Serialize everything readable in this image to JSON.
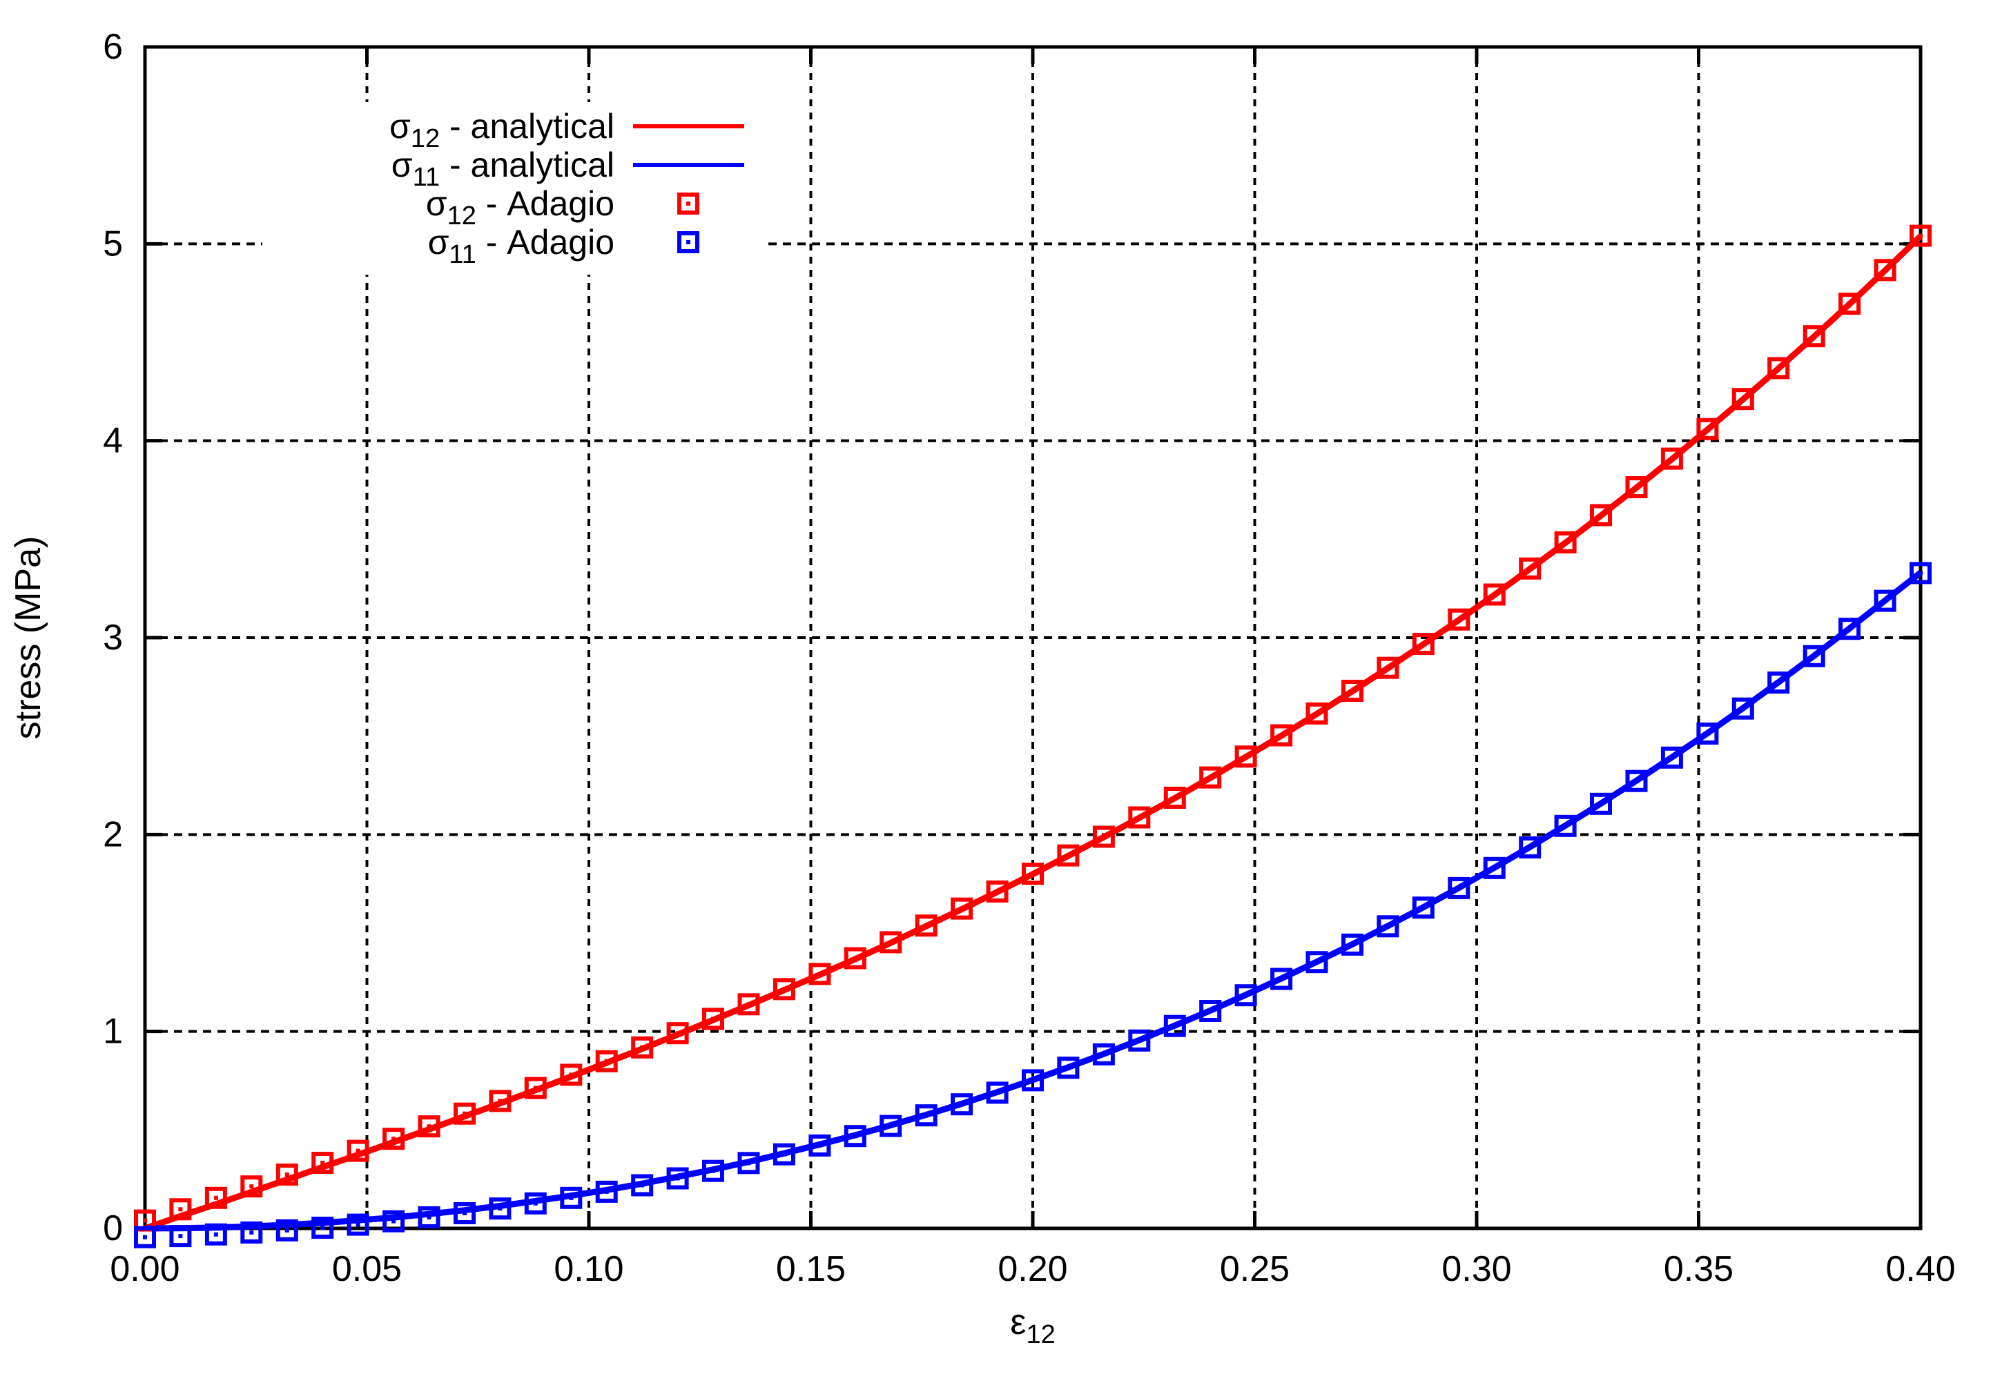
{
  "chart_data": {
    "type": "line",
    "title": "",
    "xlabel": {
      "symbol": "ε",
      "subscript": "12"
    },
    "ylabel": "stress (MPa)",
    "xlim": [
      0,
      0.4
    ],
    "ylim": [
      0,
      6
    ],
    "grid": true,
    "legend_position": "inside-top-left",
    "colors": {
      "sigma12": "#ff0000",
      "sigma11": "#0000ff",
      "axis": "#000000",
      "background": "#ffffff"
    },
    "x_ticks": [
      0,
      0.05,
      0.1,
      0.15,
      0.2,
      0.25,
      0.3,
      0.35,
      0.4
    ],
    "x_tick_labels": [
      "0.00",
      "0.05",
      "0.10",
      "0.15",
      "0.20",
      "0.25",
      "0.30",
      "0.35",
      "0.40"
    ],
    "y_ticks": [
      0,
      1,
      2,
      3,
      4,
      5,
      6
    ],
    "y_tick_labels": [
      "0",
      "1",
      "2",
      "3",
      "4",
      "5",
      "6"
    ],
    "x": [
      0,
      0.008,
      0.016,
      0.024,
      0.032,
      0.04,
      0.048,
      0.056,
      0.064,
      0.072,
      0.08,
      0.088,
      0.096,
      0.104,
      0.112,
      0.12,
      0.128,
      0.136,
      0.144,
      0.152,
      0.16,
      0.168,
      0.176,
      0.184,
      0.192,
      0.2,
      0.208,
      0.216,
      0.224,
      0.232,
      0.24,
      0.248,
      0.256,
      0.264,
      0.272,
      0.28,
      0.288,
      0.296,
      0.304,
      0.312,
      0.32,
      0.328,
      0.336,
      0.344,
      0.352,
      0.36,
      0.368,
      0.376,
      0.384,
      0.392,
      0.4
    ],
    "series": [
      {
        "name": "σ12 - analytical",
        "style": "line",
        "color": "#ff0000",
        "y": [
          0,
          0.062,
          0.123,
          0.185,
          0.248,
          0.311,
          0.374,
          0.438,
          0.503,
          0.569,
          0.635,
          0.702,
          0.771,
          0.841,
          0.912,
          0.984,
          1.058,
          1.133,
          1.21,
          1.288,
          1.368,
          1.45,
          1.535,
          1.621,
          1.709,
          1.799,
          1.892,
          1.987,
          2.085,
          2.185,
          2.288,
          2.394,
          2.502,
          2.613,
          2.728,
          2.845,
          2.966,
          3.09,
          3.217,
          3.349,
          3.482,
          3.62,
          3.762,
          3.907,
          4.057,
          4.21,
          4.367,
          4.529,
          4.694,
          4.865,
          5.039
        ]
      },
      {
        "name": "σ11 - analytical",
        "style": "line",
        "color": "#0000ff",
        "y": [
          0,
          0.001,
          0.004,
          0.01,
          0.018,
          0.028,
          0.041,
          0.055,
          0.073,
          0.092,
          0.114,
          0.139,
          0.166,
          0.195,
          0.227,
          0.262,
          0.299,
          0.338,
          0.381,
          0.426,
          0.473,
          0.524,
          0.577,
          0.633,
          0.692,
          0.754,
          0.818,
          0.886,
          0.956,
          1.03,
          1.106,
          1.186,
          1.269,
          1.354,
          1.443,
          1.536,
          1.631,
          1.73,
          1.832,
          1.937,
          2.046,
          2.158,
          2.274,
          2.393,
          2.515,
          2.642,
          2.774,
          2.908,
          3.047,
          3.189,
          3.33
        ]
      },
      {
        "name": "σ12 - Adagio",
        "style": "points",
        "color": "#ff0000",
        "y": [
          0.04,
          0.097,
          0.155,
          0.213,
          0.273,
          0.333,
          0.394,
          0.455,
          0.518,
          0.583,
          0.647,
          0.713,
          0.78,
          0.849,
          0.919,
          0.991,
          1.064,
          1.138,
          1.215,
          1.292,
          1.372,
          1.453,
          1.538,
          1.624,
          1.711,
          1.801,
          1.894,
          1.989,
          2.087,
          2.187,
          2.29,
          2.396,
          2.504,
          2.615,
          2.73,
          2.847,
          2.968,
          3.092,
          3.219,
          3.351,
          3.484,
          3.622,
          3.764,
          3.909,
          4.059,
          4.212,
          4.369,
          4.531,
          4.696,
          4.867,
          5.041
        ]
      },
      {
        "name": "σ11 - Adagio",
        "style": "points",
        "color": "#0000ff",
        "y": [
          -0.045,
          -0.039,
          -0.031,
          -0.021,
          -0.01,
          0.003,
          0.019,
          0.036,
          0.056,
          0.077,
          0.101,
          0.127,
          0.155,
          0.186,
          0.219,
          0.254,
          0.292,
          0.332,
          0.376,
          0.421,
          0.469,
          0.52,
          0.574,
          0.63,
          0.689,
          0.752,
          0.816,
          0.884,
          0.954,
          1.028,
          1.104,
          1.184,
          1.267,
          1.352,
          1.441,
          1.534,
          1.629,
          1.728,
          1.83,
          1.935,
          2.044,
          2.156,
          2.272,
          2.391,
          2.513,
          2.64,
          2.772,
          2.906,
          3.045,
          3.187,
          3.328
        ]
      }
    ],
    "legend": {
      "entries": [
        {
          "symbol": "σ",
          "subscript": "12",
          "suffix": " - analytical",
          "color": "#ff0000",
          "sample": "line"
        },
        {
          "symbol": "σ",
          "subscript": "11",
          "suffix": " - analytical",
          "color": "#0000ff",
          "sample": "line"
        },
        {
          "symbol": "σ",
          "subscript": "12",
          "suffix": " - Adagio",
          "color": "#ff0000",
          "sample": "square"
        },
        {
          "symbol": "σ",
          "subscript": "11",
          "suffix": " - Adagio",
          "color": "#0000ff",
          "sample": "square"
        }
      ]
    }
  }
}
